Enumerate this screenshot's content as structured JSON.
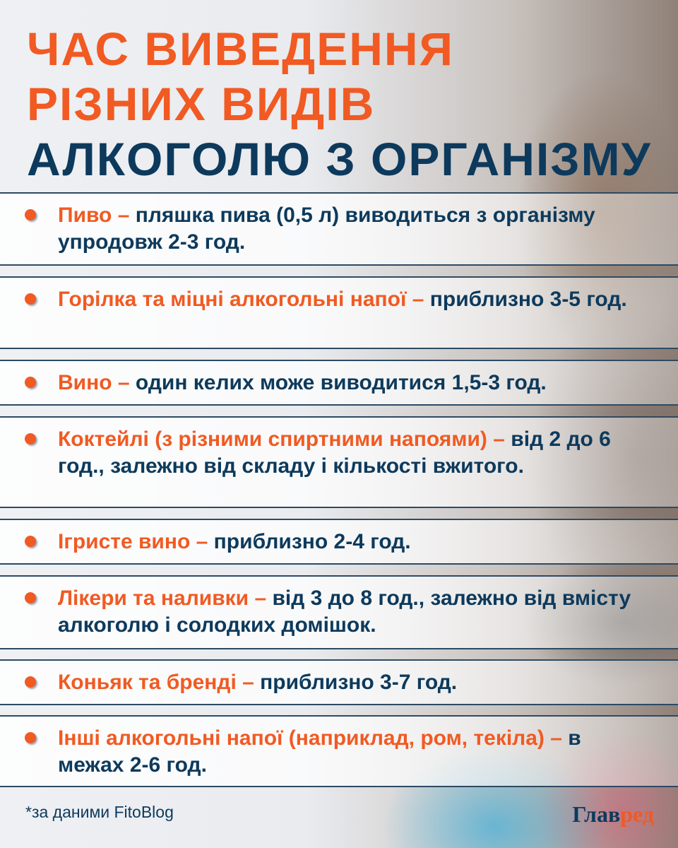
{
  "title": {
    "line1": "ЧАС ВИВЕДЕННЯ",
    "line2": "РІЗНИХ ВИДІВ",
    "line3": "АЛКОГОЛЮ З ОРГАНІЗМУ"
  },
  "colors": {
    "accent": "#f15a22",
    "navy": "#0d3a5c"
  },
  "items": [
    {
      "head": "Пиво –",
      "text": " пляшка пива (0,5 л) виводиться з організму упродовж 2-3 год."
    },
    {
      "head": "Горілка та міцні алкогольні напої –",
      "text": " приблизно 3-5 год."
    },
    {
      "head": "Вино –",
      "text": " один келих може виводитися 1,5-3 год."
    },
    {
      "head": "Коктейлі (з різними спиртними напоями) –",
      "text": " від 2 до 6 год., залежно від складу і кількості вжитого."
    },
    {
      "head": "Ігристе вино –",
      "text": " приблизно 2-4 год."
    },
    {
      "head": "Лікери та наливки –",
      "text": " від 3 до 8 год., залежно від вмісту алкоголю і солодких домішок."
    },
    {
      "head": "Коньяк та бренді –",
      "text": " приблизно 3-7 год."
    },
    {
      "head": "Інші алкогольні напої (наприклад, ром, текіла) –",
      "text": " в межах 2-6 год."
    }
  ],
  "source": "*за даними FitoBlog",
  "logo": {
    "part1": "Глав",
    "part2": "ред"
  }
}
